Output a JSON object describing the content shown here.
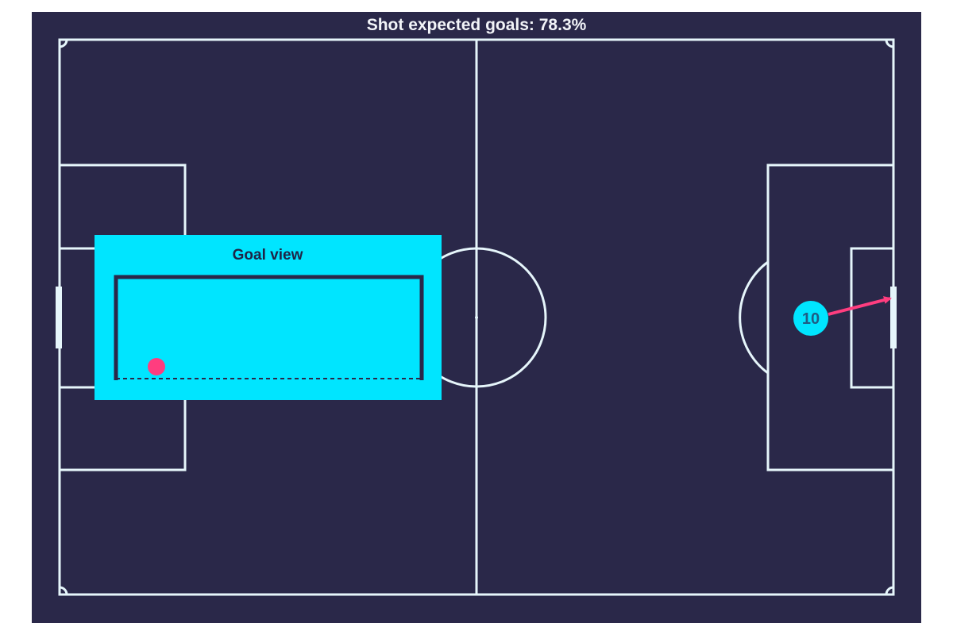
{
  "title": "Shot expected goals: 78.3%",
  "inset": {
    "title": "Goal view"
  },
  "shot": {
    "player_number": "10",
    "xg_percent": 78.3
  },
  "colors": {
    "background": "#2a2849",
    "pitch_lines": "#e6f6fb",
    "inset_background": "#00e5ff",
    "goal_frame": "#2a2849",
    "shot_marker": "#ff3d7f",
    "player_marker": "#00e5ff"
  }
}
